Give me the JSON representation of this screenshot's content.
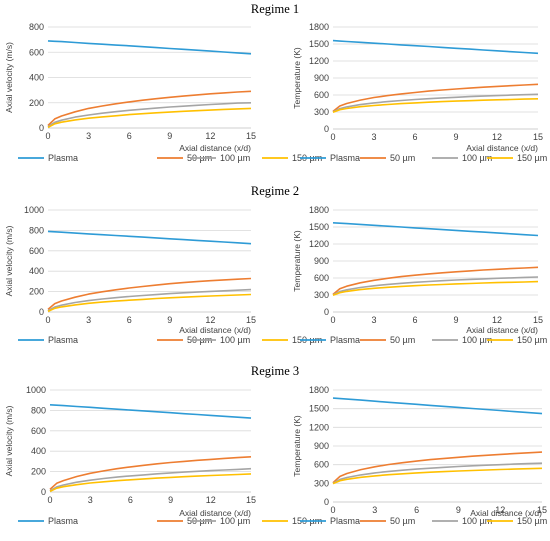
{
  "legend_labels": [
    "Plasma",
    "50 µm",
    "100 µm",
    "150 µm"
  ],
  "series_colors": [
    "#2E9BD6",
    "#ED7D31",
    "#A5A5A5",
    "#FFC000"
  ],
  "chart_data": [
    {
      "type": "line",
      "title": "Regime 1",
      "xlabel": "Axial distance (x/d)",
      "ylabel": "Axial velocity (m/s)",
      "xlim": [
        0,
        15
      ],
      "ylim": [
        0,
        800
      ],
      "xticks": [
        "0",
        "3",
        "6",
        "9",
        "12",
        "15"
      ],
      "yticks": [
        "0",
        "200",
        "400",
        "600",
        "800"
      ],
      "x": [
        0,
        0.5,
        1,
        2,
        3,
        4,
        5,
        6,
        7,
        8,
        9,
        10,
        11,
        12,
        13,
        14,
        15
      ],
      "series": [
        {
          "name": "Plasma",
          "values": [
            690,
            687,
            684,
            677,
            670,
            664,
            657,
            651,
            644,
            637,
            630,
            623,
            616,
            609,
            602,
            595,
            588
          ]
        },
        {
          "name": "50 µm",
          "values": [
            20,
            72,
            95,
            128,
            155,
            174,
            192,
            207,
            220,
            232,
            243,
            253,
            262,
            271,
            278,
            285,
            291
          ]
        },
        {
          "name": "100 µm",
          "values": [
            10,
            45,
            62,
            86,
            103,
            117,
            129,
            140,
            149,
            158,
            166,
            173,
            180,
            186,
            192,
            197,
            200
          ]
        },
        {
          "name": "150 µm",
          "values": [
            5,
            33,
            46,
            64,
            78,
            88,
            97,
            106,
            113,
            120,
            126,
            132,
            137,
            142,
            147,
            151,
            155
          ]
        }
      ]
    },
    {
      "type": "line",
      "title": "Regime 1",
      "xlabel": "Axial distance (x/d)",
      "ylabel": "Temperature (K)",
      "xlim": [
        0,
        15
      ],
      "ylim": [
        0,
        1800
      ],
      "xticks": [
        "0",
        "3",
        "6",
        "9",
        "12",
        "15"
      ],
      "yticks": [
        "0",
        "300",
        "600",
        "900",
        "1200",
        "1500",
        "1800"
      ],
      "x": [
        0,
        0.5,
        1,
        2,
        3,
        4,
        5,
        6,
        7,
        8,
        9,
        10,
        11,
        12,
        13,
        14,
        15
      ],
      "series": [
        {
          "name": "Plasma",
          "values": [
            1560,
            1552,
            1545,
            1530,
            1515,
            1500,
            1485,
            1470,
            1455,
            1440,
            1425,
            1410,
            1395,
            1380,
            1365,
            1350,
            1335
          ]
        },
        {
          "name": "50 µm",
          "values": [
            310,
            405,
            450,
            510,
            555,
            590,
            620,
            645,
            668,
            688,
            706,
            722,
            737,
            751,
            764,
            776,
            788
          ]
        },
        {
          "name": "100 µm",
          "values": [
            300,
            360,
            390,
            430,
            460,
            483,
            503,
            520,
            535,
            548,
            560,
            571,
            581,
            590,
            598,
            606,
            613
          ]
        },
        {
          "name": "150 µm",
          "values": [
            295,
            340,
            362,
            393,
            415,
            433,
            448,
            461,
            473,
            483,
            492,
            500,
            508,
            515,
            521,
            527,
            533
          ]
        }
      ]
    },
    {
      "type": "line",
      "title": "Regime 2",
      "xlabel": "Axial distance (x/d)",
      "ylabel": "Axial velocity (m/s)",
      "xlim": [
        0,
        15
      ],
      "ylim": [
        0,
        1000
      ],
      "xticks": [
        "0",
        "3",
        "6",
        "9",
        "12",
        "15"
      ],
      "yticks": [
        "0",
        "200",
        "400",
        "600",
        "800",
        "1000"
      ],
      "x": [
        0,
        0.5,
        1,
        2,
        3,
        4,
        5,
        6,
        7,
        8,
        9,
        10,
        11,
        12,
        13,
        14,
        15
      ],
      "series": [
        {
          "name": "Plasma",
          "values": [
            790,
            786,
            782,
            774,
            766,
            758,
            750,
            742,
            734,
            726,
            718,
            710,
            702,
            694,
            686,
            678,
            670
          ]
        },
        {
          "name": "50 µm",
          "values": [
            25,
            82,
            108,
            145,
            175,
            198,
            218,
            235,
            250,
            264,
            277,
            288,
            298,
            307,
            315,
            322,
            328
          ]
        },
        {
          "name": "100 µm",
          "values": [
            12,
            49,
            67,
            93,
            112,
            127,
            140,
            152,
            162,
            171,
            180,
            188,
            195,
            202,
            208,
            214,
            220
          ]
        },
        {
          "name": "150 µm",
          "values": [
            6,
            36,
            50,
            70,
            85,
            97,
            107,
            116,
            124,
            132,
            139,
            145,
            151,
            157,
            162,
            167,
            172
          ]
        }
      ]
    },
    {
      "type": "line",
      "title": "Regime 2",
      "xlabel": "Axial distance (x/d)",
      "ylabel": "Temperature (K)",
      "xlim": [
        0,
        15
      ],
      "ylim": [
        0,
        1800
      ],
      "xticks": [
        "0",
        "3",
        "6",
        "9",
        "12",
        "15"
      ],
      "yticks": [
        "0",
        "300",
        "600",
        "900",
        "1200",
        "1500",
        "1800"
      ],
      "x": [
        0,
        0.5,
        1,
        2,
        3,
        4,
        5,
        6,
        7,
        8,
        9,
        10,
        11,
        12,
        13,
        14,
        15
      ],
      "series": [
        {
          "name": "Plasma",
          "values": [
            1575,
            1567,
            1560,
            1545,
            1530,
            1515,
            1500,
            1485,
            1470,
            1455,
            1440,
            1425,
            1410,
            1395,
            1380,
            1365,
            1350
          ]
        },
        {
          "name": "50 µm",
          "values": [
            310,
            410,
            455,
            515,
            560,
            595,
            625,
            650,
            672,
            692,
            710,
            726,
            741,
            754,
            766,
            777,
            788
          ]
        },
        {
          "name": "100 µm",
          "values": [
            300,
            362,
            392,
            433,
            463,
            487,
            507,
            524,
            539,
            552,
            564,
            575,
            585,
            594,
            602,
            610,
            617
          ]
        },
        {
          "name": "150 µm",
          "values": [
            295,
            341,
            364,
            395,
            418,
            436,
            451,
            464,
            476,
            486,
            495,
            503,
            511,
            518,
            524,
            530,
            536
          ]
        }
      ]
    },
    {
      "type": "line",
      "title": "Regime 3",
      "xlabel": "Axial distance (x/d)",
      "ylabel": "Axial velocity (m/s)",
      "xlim": [
        0,
        15
      ],
      "ylim": [
        0,
        1000
      ],
      "xticks": [
        "0",
        "3",
        "6",
        "9",
        "12",
        "15"
      ],
      "yticks": [
        "0",
        "200",
        "400",
        "600",
        "800",
        "1000"
      ],
      "x": [
        0,
        0.5,
        1,
        2,
        3,
        4,
        5,
        6,
        7,
        8,
        9,
        10,
        11,
        12,
        13,
        14,
        15
      ],
      "series": [
        {
          "name": "Plasma",
          "values": [
            855,
            851,
            847,
            838,
            830,
            821,
            812,
            803,
            795,
            786,
            777,
            768,
            760,
            751,
            742,
            733,
            725
          ]
        },
        {
          "name": "50 µm",
          "values": [
            25,
            85,
            112,
            152,
            183,
            207,
            228,
            246,
            262,
            276,
            289,
            300,
            311,
            320,
            329,
            337,
            345
          ]
        },
        {
          "name": "100 µm",
          "values": [
            12,
            50,
            69,
            96,
            116,
            132,
            146,
            158,
            168,
            178,
            187,
            195,
            203,
            210,
            216,
            222,
            228
          ]
        },
        {
          "name": "150 µm",
          "values": [
            6,
            37,
            52,
            72,
            88,
            100,
            111,
            120,
            128,
            136,
            143,
            150,
            156,
            162,
            167,
            172,
            177
          ]
        }
      ]
    },
    {
      "type": "line",
      "title": "Regime 3",
      "xlabel": "Axial distance (x/d)",
      "ylabel": "Temperature (K)",
      "xlim": [
        0,
        15
      ],
      "ylim": [
        0,
        1800
      ],
      "xticks": [
        "0",
        "3",
        "6",
        "9",
        "12",
        "15"
      ],
      "yticks": [
        "0",
        "300",
        "600",
        "900",
        "1200",
        "1500",
        "1800"
      ],
      "x": [
        0,
        0.5,
        1,
        2,
        3,
        4,
        5,
        6,
        7,
        8,
        9,
        10,
        11,
        12,
        13,
        14,
        15
      ],
      "series": [
        {
          "name": "Plasma",
          "values": [
            1670,
            1662,
            1653,
            1637,
            1620,
            1603,
            1587,
            1570,
            1553,
            1537,
            1520,
            1503,
            1487,
            1470,
            1453,
            1437,
            1420
          ]
        },
        {
          "name": "50 µm",
          "values": [
            310,
            412,
            458,
            520,
            566,
            602,
            632,
            658,
            681,
            701,
            719,
            736,
            751,
            765,
            778,
            790,
            802
          ]
        },
        {
          "name": "100 µm",
          "values": [
            300,
            363,
            394,
            436,
            467,
            491,
            511,
            529,
            544,
            557,
            570,
            581,
            591,
            600,
            609,
            617,
            624
          ]
        },
        {
          "name": "150 µm",
          "values": [
            295,
            342,
            365,
            397,
            420,
            438,
            454,
            467,
            479,
            489,
            499,
            507,
            515,
            522,
            529,
            535,
            541
          ]
        }
      ]
    }
  ]
}
